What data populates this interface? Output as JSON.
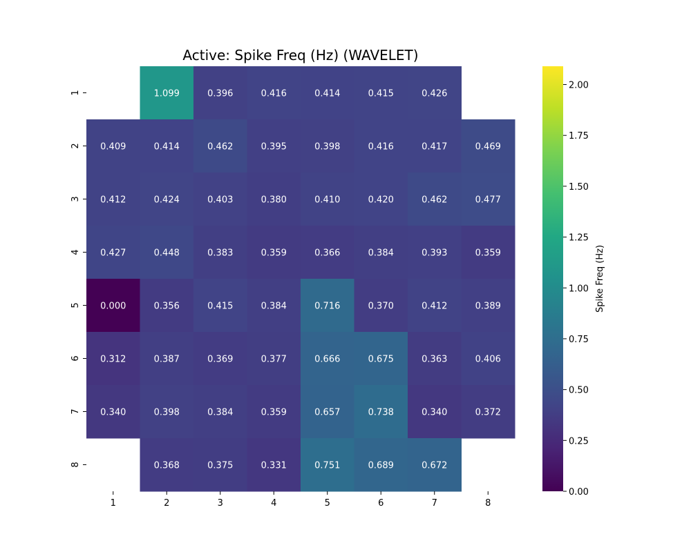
{
  "chart_data": {
    "type": "heatmap",
    "title": "Active: Spike Freq (Hz) (WAVELET)",
    "x_labels": [
      "1",
      "2",
      "3",
      "4",
      "5",
      "6",
      "7",
      "8"
    ],
    "y_labels": [
      "1",
      "2",
      "3",
      "4",
      "5",
      "6",
      "7",
      "8"
    ],
    "values": [
      [
        null,
        1.099,
        0.396,
        0.416,
        0.414,
        0.415,
        0.426,
        null
      ],
      [
        0.409,
        0.414,
        0.462,
        0.395,
        0.398,
        0.416,
        0.417,
        0.469
      ],
      [
        0.412,
        0.424,
        0.403,
        0.38,
        0.41,
        0.42,
        0.462,
        0.477
      ],
      [
        0.427,
        0.448,
        0.383,
        0.359,
        0.366,
        0.384,
        0.393,
        0.359
      ],
      [
        0.0,
        0.356,
        0.415,
        0.384,
        0.716,
        0.37,
        0.412,
        0.389
      ],
      [
        0.312,
        0.387,
        0.369,
        0.377,
        0.666,
        0.675,
        0.363,
        0.406
      ],
      [
        0.34,
        0.398,
        0.384,
        0.359,
        0.657,
        0.738,
        0.34,
        0.372
      ],
      [
        null,
        0.368,
        0.375,
        0.331,
        0.751,
        0.689,
        0.672,
        null
      ]
    ],
    "value_format": "0.000",
    "colormap": "viridis",
    "vmin": 0.0,
    "vmax": 2.09,
    "colorbar": {
      "label": "Spike Freq (Hz)",
      "ticks": [
        0.0,
        0.25,
        0.5,
        0.75,
        1.0,
        1.25,
        1.5,
        1.75,
        2.0
      ],
      "tick_labels": [
        "0.00",
        "0.25",
        "0.50",
        "0.75",
        "1.00",
        "1.25",
        "1.50",
        "1.75",
        "2.00"
      ]
    },
    "grid": false
  }
}
